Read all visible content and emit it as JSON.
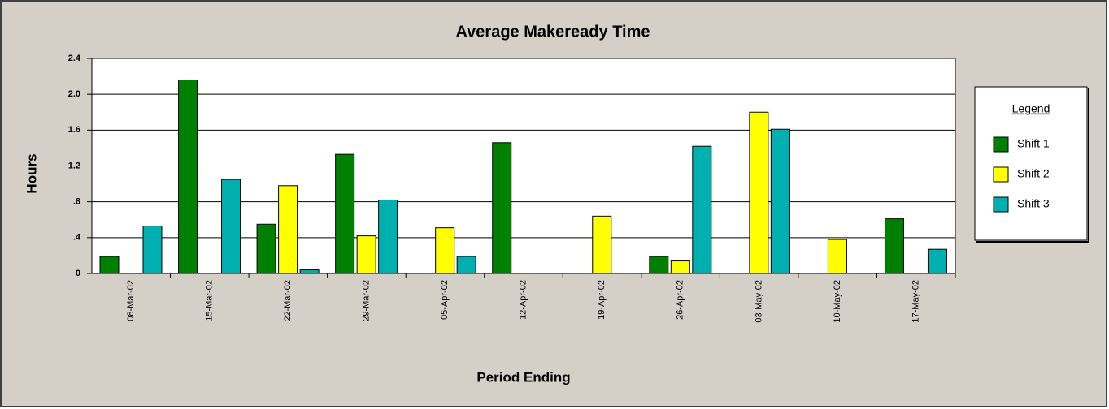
{
  "chart_data": {
    "type": "bar",
    "title": "Average Makeready Time",
    "x_label": "Period Ending",
    "y_label": "Hours",
    "legend_title": "Legend",
    "categories": [
      "08-Mar-02",
      "15-Mar-02",
      "22-Mar-02",
      "29-Mar-02",
      "05-Apr-02",
      "12-Apr-02",
      "19-Apr-02",
      "26-Apr-02",
      "03-May-02",
      "10-May-02",
      "17-May-02"
    ],
    "series": [
      {
        "name": "Shift 1",
        "color": "#008000",
        "values": [
          0.19,
          2.16,
          0.55,
          1.33,
          0,
          1.46,
          0,
          0.19,
          0,
          0,
          0.61
        ]
      },
      {
        "name": "Shift 2",
        "color": "#ffff00",
        "values": [
          0,
          0,
          0.98,
          0.42,
          0.51,
          0,
          0.64,
          0.14,
          1.8,
          0.38,
          0
        ]
      },
      {
        "name": "Shift 3",
        "color": "#00b0b0",
        "values": [
          0.53,
          1.05,
          0.04,
          0.82,
          0.19,
          0,
          0,
          1.42,
          1.61,
          0,
          0.27
        ]
      }
    ],
    "ylim": [
      0,
      2.4
    ],
    "yticks": [
      0,
      {
        "value": 0.4,
        "label": ".4"
      },
      {
        "value": 0.8,
        "label": ".8"
      },
      1.2,
      1.6,
      {
        "value": 2,
        "label": "2.0"
      },
      2.4
    ],
    "grid": true,
    "legend_position": "right"
  }
}
